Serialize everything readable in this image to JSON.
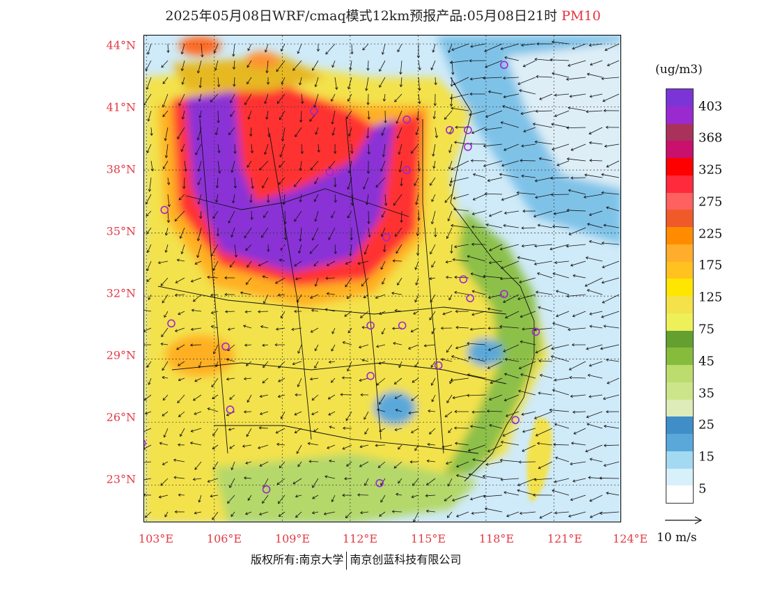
{
  "header": {
    "title": "2025年05月08日WRF/cmaq模式12km预报产品:05月08日21时",
    "pollutant": "PM10"
  },
  "map": {
    "lat_ticks": [
      "44°N",
      "41°N",
      "38°N",
      "35°N",
      "32°N",
      "29°N",
      "26°N",
      "23°N"
    ],
    "lon_ticks": [
      "103°E",
      "106°E",
      "109°E",
      "112°E",
      "115°E",
      "118°E",
      "121°E",
      "124°E"
    ],
    "lon_range": [
      102.9,
      124
    ],
    "lat_range": [
      21.2,
      44.4
    ]
  },
  "legend": {
    "unit": "(ug/m3)",
    "labels": [
      "403",
      "368",
      "325",
      "275",
      "225",
      "175",
      "125",
      "75",
      "45",
      "35",
      "25",
      "15",
      "5"
    ],
    "colors": [
      "#7b35d6",
      "#9a2ad0",
      "#a8325a",
      "#c8106c",
      "#ff0000",
      "#ff2a3c",
      "#ff6060",
      "#f05a28",
      "#ff8c00",
      "#ffad2a",
      "#ffc21e",
      "#ffe600",
      "#f5e14a",
      "#eef05a",
      "#64a030",
      "#86bc3c",
      "#bcdc6e",
      "#cde58a",
      "#ddecb8",
      "#3f8ec8",
      "#5aa8da",
      "#a4d9f2",
      "#d8f0fa",
      "#ffffff"
    ],
    "colors_note": "top to bottom"
  },
  "wind_reference": {
    "label": "10 m/s"
  },
  "footer": {
    "copyright": "版权所有:南京大学",
    "company": "南京创蓝科技有限公司"
  }
}
